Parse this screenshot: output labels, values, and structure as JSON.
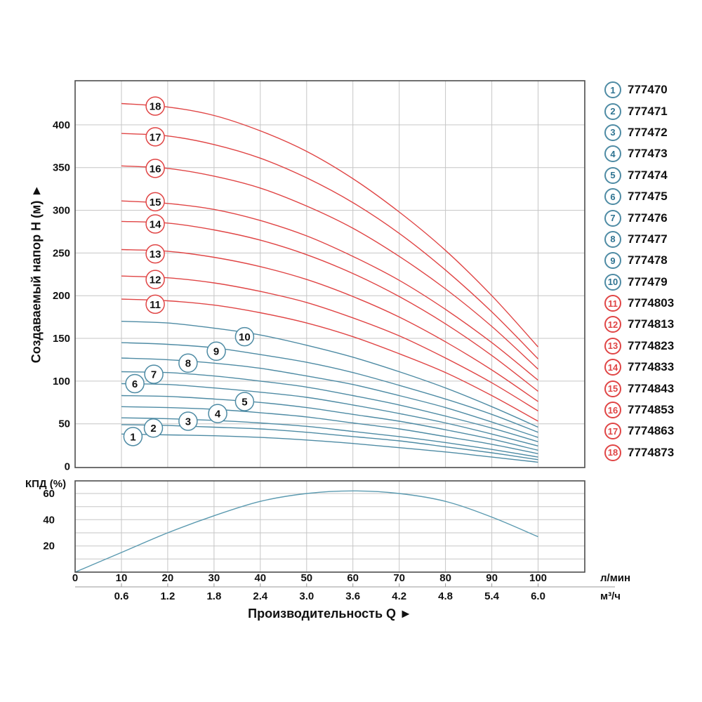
{
  "page": {
    "background": "#ffffff"
  },
  "colors": {
    "red": "#e04545",
    "teal": "#4e8ba4",
    "teal_text": "#2e7391",
    "eff_curve": "#5b9ab0",
    "grid": "#c6c6c6",
    "border": "#4d4d4d",
    "text": "#111111"
  },
  "y_axis_title": "Создаваемый напор H (м) ►",
  "x_axis_title": "Производительность Q ►",
  "efficiency_label": "КПД (%)",
  "units": {
    "flow_lmin": "л/мин",
    "flow_m3h": "м³/ч"
  },
  "flow_axis": {
    "lmin_values": [
      0,
      10,
      20,
      30,
      40,
      50,
      60,
      70,
      80,
      90,
      100
    ],
    "m3h_values": [
      "0.6",
      "1.2",
      "1.8",
      "2.4",
      "3.0",
      "3.6",
      "4.2",
      "4.8",
      "5.4",
      "6.0"
    ],
    "m3h_at": [
      10,
      20,
      30,
      40,
      50,
      60,
      70,
      80,
      90,
      100
    ]
  },
  "legend": {
    "items": [
      {
        "number": "1",
        "model": "777470",
        "color": "teal"
      },
      {
        "number": "2",
        "model": "777471",
        "color": "teal"
      },
      {
        "number": "3",
        "model": "777472",
        "color": "teal"
      },
      {
        "number": "4",
        "model": "777473",
        "color": "teal"
      },
      {
        "number": "5",
        "model": "777474",
        "color": "teal"
      },
      {
        "number": "6",
        "model": "777475",
        "color": "teal"
      },
      {
        "number": "7",
        "model": "777476",
        "color": "teal"
      },
      {
        "number": "8",
        "model": "777477",
        "color": "teal"
      },
      {
        "number": "9",
        "model": "777478",
        "color": "teal"
      },
      {
        "number": "10",
        "model": "777479",
        "color": "teal"
      },
      {
        "number": "11",
        "model": "7774803",
        "color": "red"
      },
      {
        "number": "12",
        "model": "7774813",
        "color": "red"
      },
      {
        "number": "13",
        "model": "7774823",
        "color": "red"
      },
      {
        "number": "14",
        "model": "7774833",
        "color": "red"
      },
      {
        "number": "15",
        "model": "7774843",
        "color": "red"
      },
      {
        "number": "16",
        "model": "7774853",
        "color": "red"
      },
      {
        "number": "17",
        "model": "7774863",
        "color": "red"
      },
      {
        "number": "18",
        "model": "7774873",
        "color": "red"
      }
    ]
  },
  "chart_data": [
    {
      "type": "line",
      "title": "",
      "xlabel": "Производительность Q (л/мин)",
      "ylabel": "Создаваемый напор H (м)",
      "x": [
        10,
        20,
        30,
        40,
        50,
        60,
        70,
        80,
        90,
        100
      ],
      "xlim": [
        0,
        110
      ],
      "ylim": [
        0,
        452
      ],
      "yticks": [
        0,
        50,
        100,
        150,
        200,
        250,
        300,
        350,
        400
      ],
      "xgrid": [
        10,
        20,
        30,
        40,
        50,
        60,
        70,
        80,
        90,
        100
      ],
      "grid": true,
      "legend_position": "right",
      "series": [
        {
          "id": "1",
          "model": "777470",
          "color": "teal",
          "values": [
            38,
            37,
            36,
            34,
            31,
            27,
            22,
            17,
            11,
            5
          ],
          "label_at": {
            "x": 12.5,
            "y": 35
          }
        },
        {
          "id": "2",
          "model": "777471",
          "color": "teal",
          "values": [
            49,
            48,
            46,
            44,
            40,
            35,
            30,
            23,
            16,
            8
          ],
          "label_at": {
            "x": 16.9,
            "y": 45
          }
        },
        {
          "id": "3",
          "model": "777472",
          "color": "teal",
          "values": [
            57,
            56,
            54,
            51,
            47,
            41,
            35,
            28,
            20,
            11
          ],
          "label_at": {
            "x": 24.4,
            "y": 53
          }
        },
        {
          "id": "4",
          "model": "777473",
          "color": "teal",
          "values": [
            70,
            69,
            67,
            63,
            58,
            51,
            44,
            35,
            26,
            15
          ],
          "label_at": {
            "x": 30.8,
            "y": 62
          }
        },
        {
          "id": "5",
          "model": "777474",
          "color": "teal",
          "values": [
            83,
            82,
            79,
            75,
            69,
            61,
            53,
            43,
            32,
            19
          ],
          "label_at": {
            "x": 36.6,
            "y": 76
          }
        },
        {
          "id": "6",
          "model": "777475",
          "color": "teal",
          "values": [
            97,
            96,
            92,
            87,
            81,
            72,
            62,
            51,
            38,
            24
          ],
          "label_at": {
            "x": 12.9,
            "y": 97
          }
        },
        {
          "id": "7",
          "model": "777476",
          "color": "teal",
          "values": [
            111,
            110,
            106,
            100,
            93,
            83,
            72,
            59,
            45,
            29
          ],
          "label_at": {
            "x": 17.0,
            "y": 108
          }
        },
        {
          "id": "8",
          "model": "777477",
          "color": "teal",
          "values": [
            127,
            125,
            121,
            115,
            106,
            96,
            83,
            69,
            52,
            34
          ],
          "label_at": {
            "x": 24.4,
            "y": 121
          }
        },
        {
          "id": "9",
          "model": "777478",
          "color": "teal",
          "values": [
            145,
            143,
            139,
            131,
            122,
            110,
            95,
            79,
            61,
            40
          ],
          "label_at": {
            "x": 30.5,
            "y": 135
          }
        },
        {
          "id": "10",
          "model": "777479",
          "color": "teal",
          "values": [
            170,
            168,
            162,
            154,
            142,
            128,
            111,
            92,
            70,
            46
          ],
          "label_at": {
            "x": 36.6,
            "y": 152
          }
        },
        {
          "id": "11",
          "model": "7774803",
          "color": "red",
          "values": [
            196,
            194,
            189,
            180,
            168,
            152,
            132,
            110,
            83,
            53
          ],
          "label_at": {
            "x": 17.3,
            "y": 190
          }
        },
        {
          "id": "12",
          "model": "7774813",
          "color": "red",
          "values": [
            223,
            221,
            215,
            205,
            192,
            174,
            153,
            127,
            98,
            65
          ],
          "label_at": {
            "x": 17.3,
            "y": 219
          }
        },
        {
          "id": "13",
          "model": "7774823",
          "color": "red",
          "values": [
            254,
            252,
            245,
            234,
            219,
            199,
            175,
            146,
            113,
            76
          ],
          "label_at": {
            "x": 17.3,
            "y": 249
          }
        },
        {
          "id": "14",
          "model": "7774833",
          "color": "red",
          "values": [
            287,
            285,
            277,
            265,
            248,
            226,
            199,
            167,
            130,
            88
          ],
          "label_at": {
            "x": 17.3,
            "y": 284
          }
        },
        {
          "id": "15",
          "model": "7774843",
          "color": "red",
          "values": [
            311,
            308,
            301,
            288,
            270,
            246,
            218,
            184,
            145,
            101
          ],
          "label_at": {
            "x": 17.3,
            "y": 310
          }
        },
        {
          "id": "16",
          "model": "7774853",
          "color": "red",
          "values": [
            352,
            349,
            340,
            326,
            305,
            279,
            246,
            208,
            164,
            114
          ],
          "label_at": {
            "x": 17.3,
            "y": 349
          }
        },
        {
          "id": "17",
          "model": "7774863",
          "color": "red",
          "values": [
            390,
            387,
            377,
            361,
            338,
            309,
            273,
            230,
            181,
            126
          ],
          "label_at": {
            "x": 17.3,
            "y": 386
          }
        },
        {
          "id": "18",
          "model": "7774873",
          "color": "red",
          "values": [
            425,
            421,
            411,
            393,
            369,
            337,
            298,
            253,
            200,
            140
          ],
          "label_at": {
            "x": 17.3,
            "y": 422
          }
        }
      ]
    },
    {
      "type": "line",
      "title": "КПД (%)",
      "xlabel": "Производительность Q (л/мин)",
      "ylabel": "КПД (%)",
      "x": [
        0,
        10,
        20,
        30,
        40,
        50,
        60,
        70,
        80,
        90,
        100
      ],
      "xlim": [
        0,
        110
      ],
      "ylim": [
        0,
        70
      ],
      "yticks": [
        20,
        40,
        60
      ],
      "ygrid": [
        10,
        20,
        30,
        40,
        50,
        60
      ],
      "xgrid": [
        10,
        20,
        30,
        40,
        50,
        60,
        70,
        80,
        90,
        100
      ],
      "grid": true,
      "series": [
        {
          "name": "КПД",
          "color": "eff_curve",
          "values": [
            0,
            15,
            30,
            43,
            54,
            60,
            62,
            60,
            54,
            42,
            27
          ]
        }
      ]
    }
  ]
}
